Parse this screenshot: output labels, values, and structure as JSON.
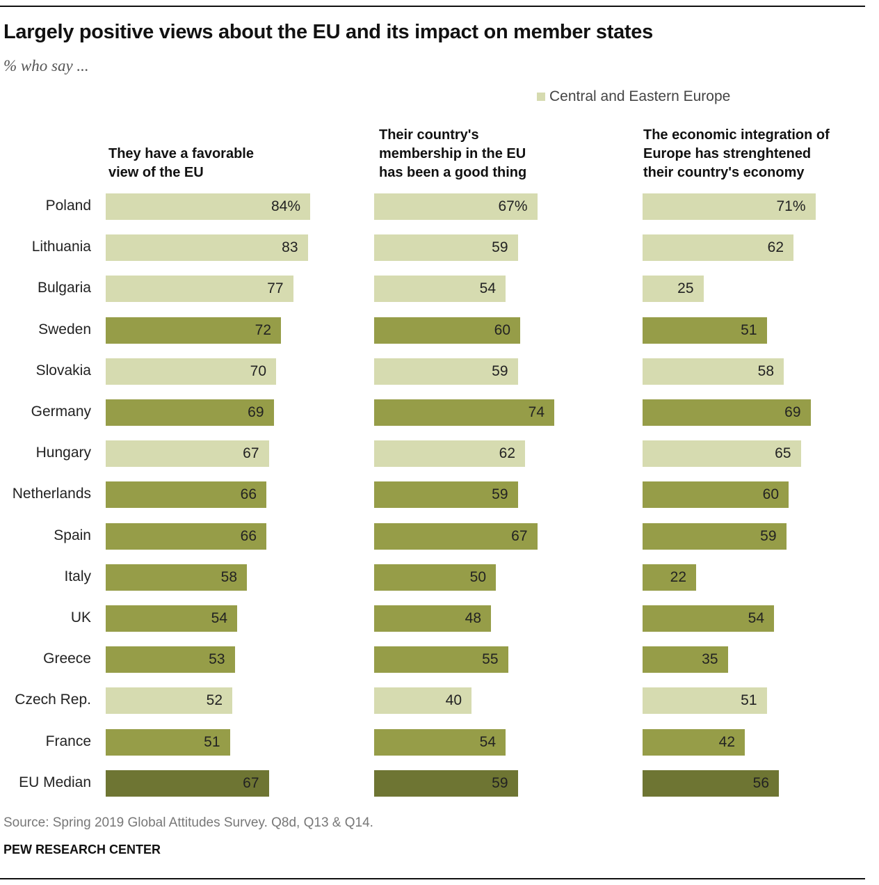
{
  "chart_data": {
    "type": "bar",
    "orientation": "horizontal",
    "title": "Largely positive views about the EU and its impact on member states",
    "subtitle": "% who say ...",
    "legend": [
      {
        "label": "Central and Eastern Europe",
        "color": "#d6dbb0"
      }
    ],
    "legend_placement": "top-right",
    "colors": {
      "cee": "#d6dbb0",
      "other": "#969d48",
      "median": "#6e7533"
    },
    "categories": [
      "Poland",
      "Lithuania",
      "Bulgaria",
      "Sweden",
      "Slovakia",
      "Germany",
      "Hungary",
      "Netherlands",
      "Spain",
      "Italy",
      "UK",
      "Greece",
      "Czech Rep.",
      "France",
      "EU Median"
    ],
    "groups": [
      "cee",
      "cee",
      "cee",
      "other",
      "cee",
      "other",
      "cee",
      "other",
      "other",
      "other",
      "other",
      "other",
      "cee",
      "other",
      "median"
    ],
    "series": [
      {
        "name": "They have a favorable\nview of the EU",
        "values": [
          84,
          83,
          77,
          72,
          70,
          69,
          67,
          66,
          66,
          58,
          54,
          53,
          52,
          51,
          67
        ]
      },
      {
        "name": "Their country's\nmembership in the EU\nhas been a good thing",
        "values": [
          67,
          59,
          54,
          60,
          59,
          74,
          62,
          59,
          67,
          50,
          48,
          55,
          40,
          54,
          59
        ]
      },
      {
        "name": "The economic integration of\nEurope has strenghtened\ntheir country's economy",
        "values": [
          71,
          62,
          25,
          51,
          58,
          69,
          65,
          60,
          59,
          22,
          54,
          35,
          51,
          42,
          56
        ]
      }
    ],
    "value_suffix_first_row": "%",
    "grid": false
  },
  "footer": {
    "source": "Source: Spring 2019 Global Attitudes Survey. Q8d, Q13 & Q14.",
    "org": "PEW RESEARCH CENTER"
  }
}
